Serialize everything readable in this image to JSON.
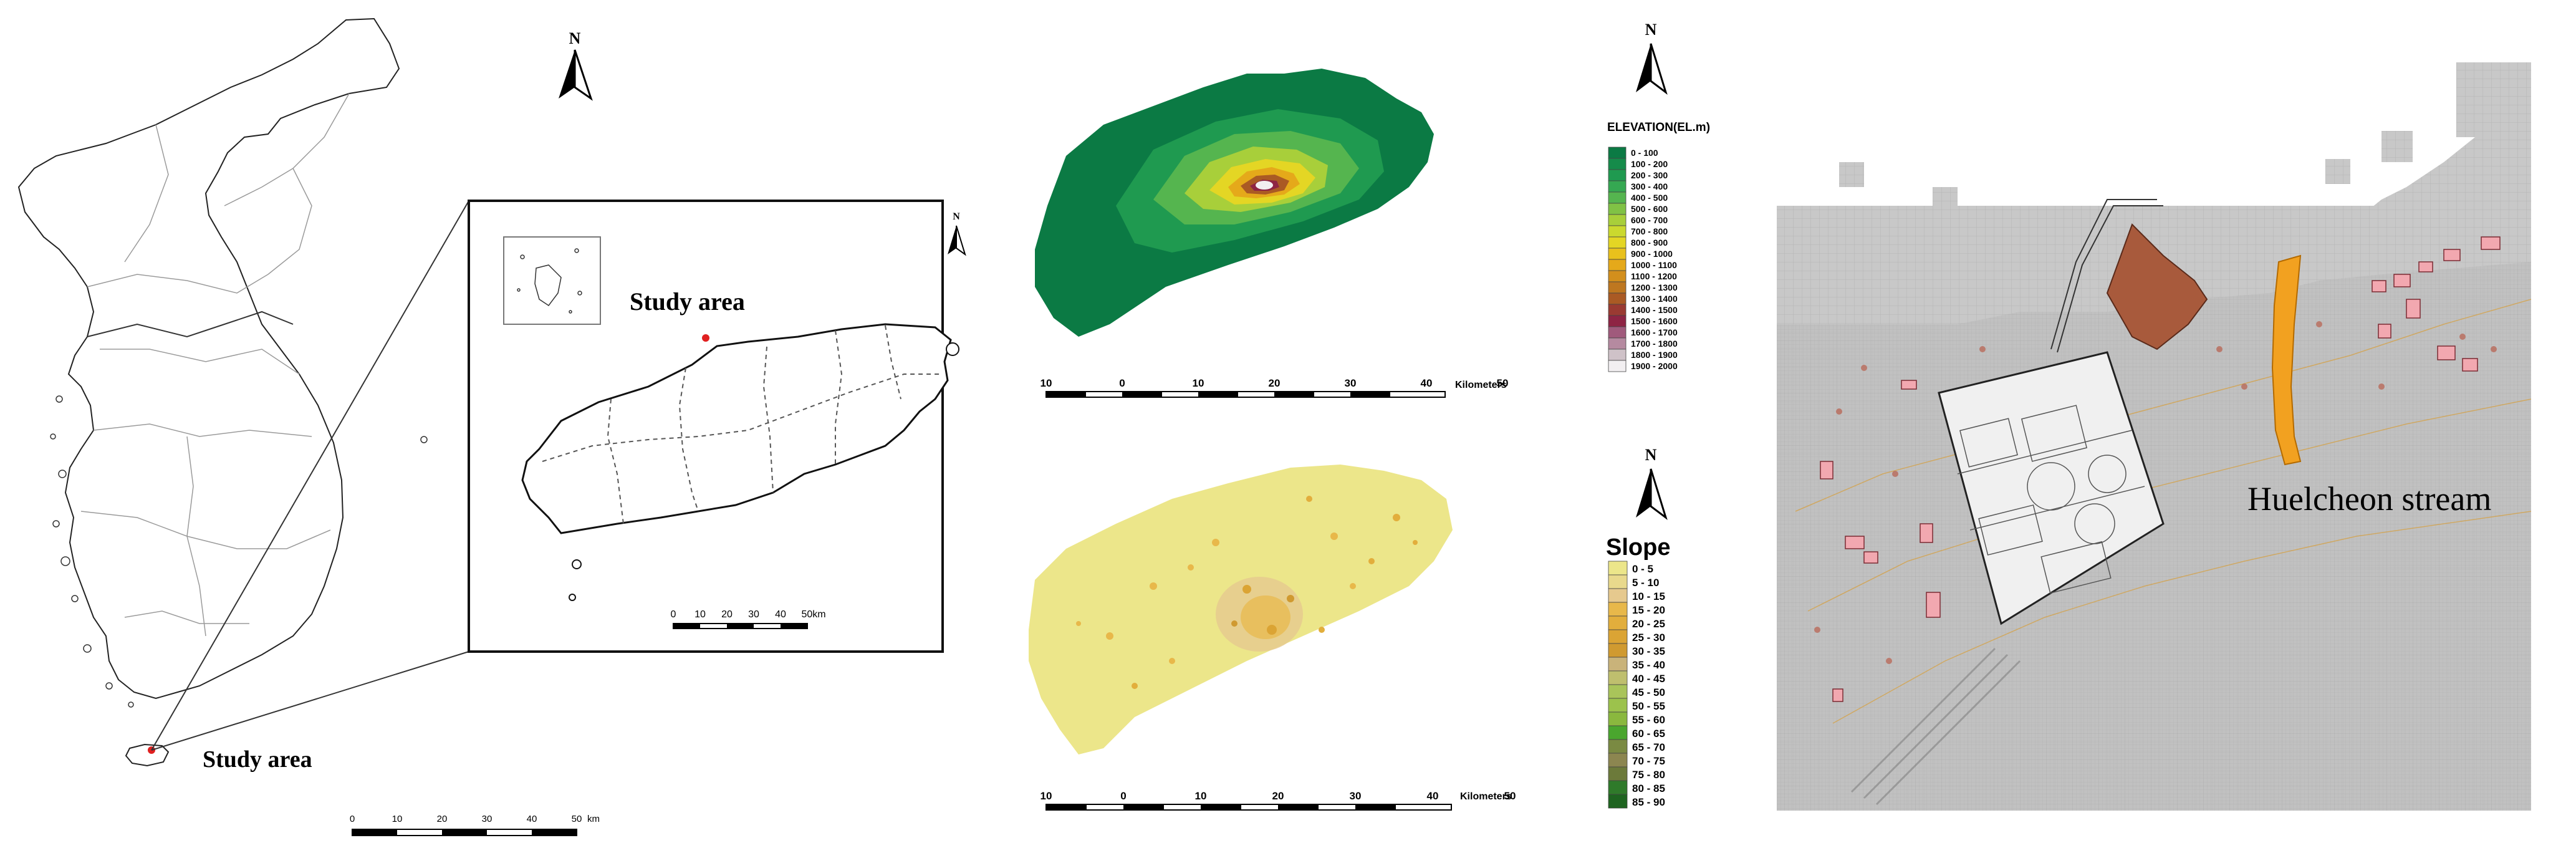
{
  "korea_map": {
    "north_label": "N",
    "study_area_label": "Study area",
    "scale": {
      "ticks": [
        "0",
        "10",
        "20",
        "30",
        "40",
        "50"
      ],
      "unit": "km"
    },
    "inset": {
      "north_label": "N",
      "study_area_label": "Study area",
      "scale_ticks": [
        "0",
        "10",
        "20",
        "30",
        "40",
        "50km"
      ]
    }
  },
  "elevation_map": {
    "north_label": "N",
    "legend_title": "ELEVATION(EL.m)",
    "legend": [
      {
        "label": "0 - 100",
        "color": "#0b7a44"
      },
      {
        "label": "100 - 200",
        "color": "#158b4a"
      },
      {
        "label": "200 - 300",
        "color": "#1f9a50"
      },
      {
        "label": "300 - 400",
        "color": "#35a852"
      },
      {
        "label": "400 - 500",
        "color": "#55b54f"
      },
      {
        "label": "500 - 600",
        "color": "#80c245"
      },
      {
        "label": "600 - 700",
        "color": "#a8cf3a"
      },
      {
        "label": "700 - 800",
        "color": "#cbd92e"
      },
      {
        "label": "800 - 900",
        "color": "#e4d624"
      },
      {
        "label": "900 - 1000",
        "color": "#e9c11c"
      },
      {
        "label": "1000 - 1100",
        "color": "#e5a91a"
      },
      {
        "label": "1100 - 1200",
        "color": "#d38f1c"
      },
      {
        "label": "1200 - 1300",
        "color": "#be7720"
      },
      {
        "label": "1300 - 1400",
        "color": "#aa5a24"
      },
      {
        "label": "1400 - 1500",
        "color": "#9a3a32"
      },
      {
        "label": "1500 - 1600",
        "color": "#8e2444"
      },
      {
        "label": "1600 - 1700",
        "color": "#a05a7c"
      },
      {
        "label": "1700 - 1800",
        "color": "#b58aa0"
      },
      {
        "label": "1800 - 1900",
        "color": "#cfc2c8"
      },
      {
        "label": "1900 - 2000",
        "color": "#f2eff1"
      }
    ],
    "scale": {
      "ticks": [
        "10",
        "0",
        "10",
        "20",
        "30",
        "40",
        "50"
      ],
      "unit": "Kilometers"
    }
  },
  "slope_map": {
    "north_label": "N",
    "legend_title": "Slope",
    "legend": [
      {
        "label": "0 - 5",
        "color": "#ece68a"
      },
      {
        "label": "5 - 10",
        "color": "#e9d98c"
      },
      {
        "label": "10 - 15",
        "color": "#e6c98e"
      },
      {
        "label": "15 - 20",
        "color": "#e8b84a"
      },
      {
        "label": "20 - 25",
        "color": "#e2ae3c"
      },
      {
        "label": "25 - 30",
        "color": "#dba434"
      },
      {
        "label": "30 - 35",
        "color": "#d09a30"
      },
      {
        "label": "35 - 40",
        "color": "#c9b37a"
      },
      {
        "label": "40 - 45",
        "color": "#bfbf6e"
      },
      {
        "label": "45 - 50",
        "color": "#a9c45a"
      },
      {
        "label": "50 - 55",
        "color": "#9cc24c"
      },
      {
        "label": "55 - 60",
        "color": "#8ab83e"
      },
      {
        "label": "60 - 65",
        "color": "#4aa62e"
      },
      {
        "label": "65 - 70",
        "color": "#7a8a42"
      },
      {
        "label": "70 - 75",
        "color": "#8c8650"
      },
      {
        "label": "75 - 80",
        "color": "#6c7a3a"
      },
      {
        "label": "80 - 85",
        "color": "#2f7a2a"
      },
      {
        "label": "85 - 90",
        "color": "#1e6420"
      }
    ],
    "scale": {
      "ticks": [
        "10",
        "0",
        "10",
        "20",
        "30",
        "40",
        "50"
      ],
      "unit": "Kilometers"
    }
  },
  "site_map": {
    "stream_label": "Huelcheon stream",
    "stream_color": "#f2a120"
  }
}
